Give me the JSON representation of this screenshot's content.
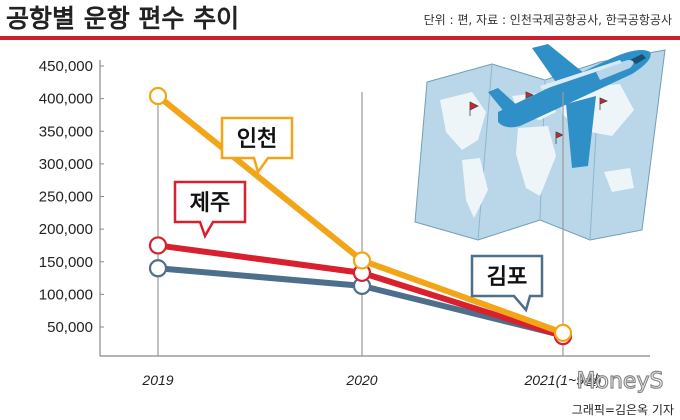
{
  "header": {
    "title": "공항별 운항 편수 추이",
    "source": "단위 : 편, 자료 : 인천국제공항공사, 한국공항공사"
  },
  "credit": "그래픽=김은옥 기자",
  "watermark": "MoneyS",
  "colors": {
    "accent_red": "#cc1f2e",
    "incheon": "#f2a516",
    "jeju": "#d9202e",
    "gimpo": "#4d6f8c",
    "map": "#b9d7e8",
    "plane": "#2f8fc7"
  },
  "chart_data": {
    "type": "line",
    "title": "공항별 운항 편수 추이",
    "xlabel": "",
    "ylabel": "",
    "categories": [
      "2019",
      "2020",
      "2021(1~9월)"
    ],
    "ylim": [
      50000,
      450000
    ],
    "yticks": [
      "50,000",
      "100,000",
      "150,000",
      "200,000",
      "250,000",
      "300,000",
      "350,000",
      "400,000",
      "450,000"
    ],
    "ytick_values": [
      50000,
      100000,
      150000,
      200000,
      250000,
      300000,
      350000,
      400000,
      450000
    ],
    "grid": false,
    "series": [
      {
        "name": "인천",
        "color": "#f2a516",
        "values": [
          404000,
          152000,
          41000
        ]
      },
      {
        "name": "제주",
        "color": "#d9202e",
        "values": [
          175000,
          133000,
          36000
        ]
      },
      {
        "name": "김포",
        "color": "#4d6f8c",
        "values": [
          140000,
          113000,
          37000
        ]
      }
    ]
  }
}
